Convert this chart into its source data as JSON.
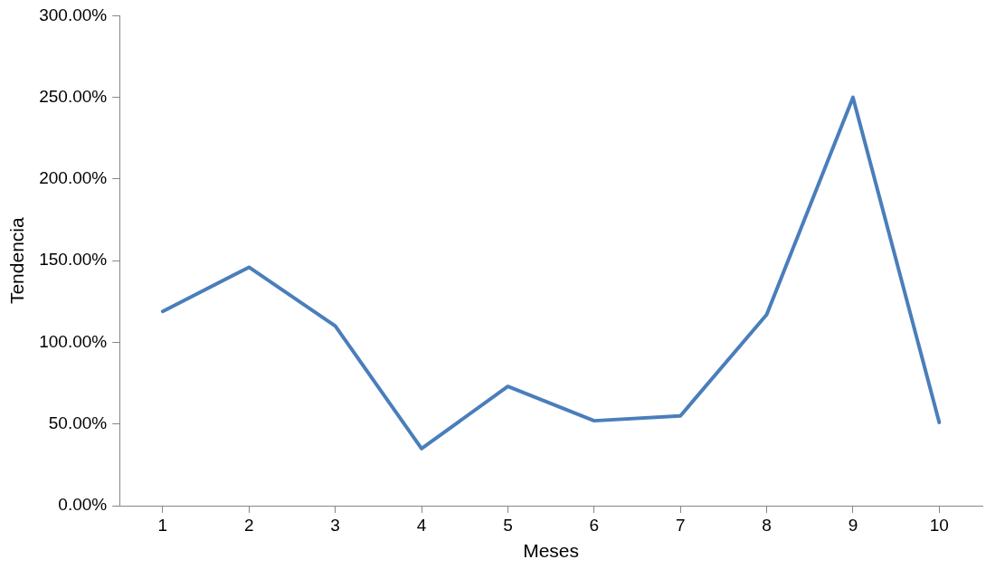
{
  "chart_data": {
    "type": "line",
    "xlabel": "Meses",
    "ylabel": "Tendencia",
    "categories": [
      "1",
      "2",
      "3",
      "4",
      "5",
      "6",
      "7",
      "8",
      "9",
      "10"
    ],
    "series": [
      {
        "color": "#4a7ebb",
        "values": [
          119,
          146,
          110,
          35,
          73,
          52,
          55,
          117,
          250,
          51
        ]
      }
    ],
    "ylim": [
      0,
      300
    ],
    "yticks": [
      {
        "value": 0,
        "label": "0.00%"
      },
      {
        "value": 50,
        "label": "50.00%"
      },
      {
        "value": 100,
        "label": "100.00%"
      },
      {
        "value": 150,
        "label": "150.00%"
      },
      {
        "value": 200,
        "label": "200.00%"
      },
      {
        "value": 250,
        "label": "250.00%"
      },
      {
        "value": 300,
        "label": "300.00%"
      }
    ],
    "grid": false,
    "legend": false,
    "marker": "none",
    "line_style": "solid"
  }
}
